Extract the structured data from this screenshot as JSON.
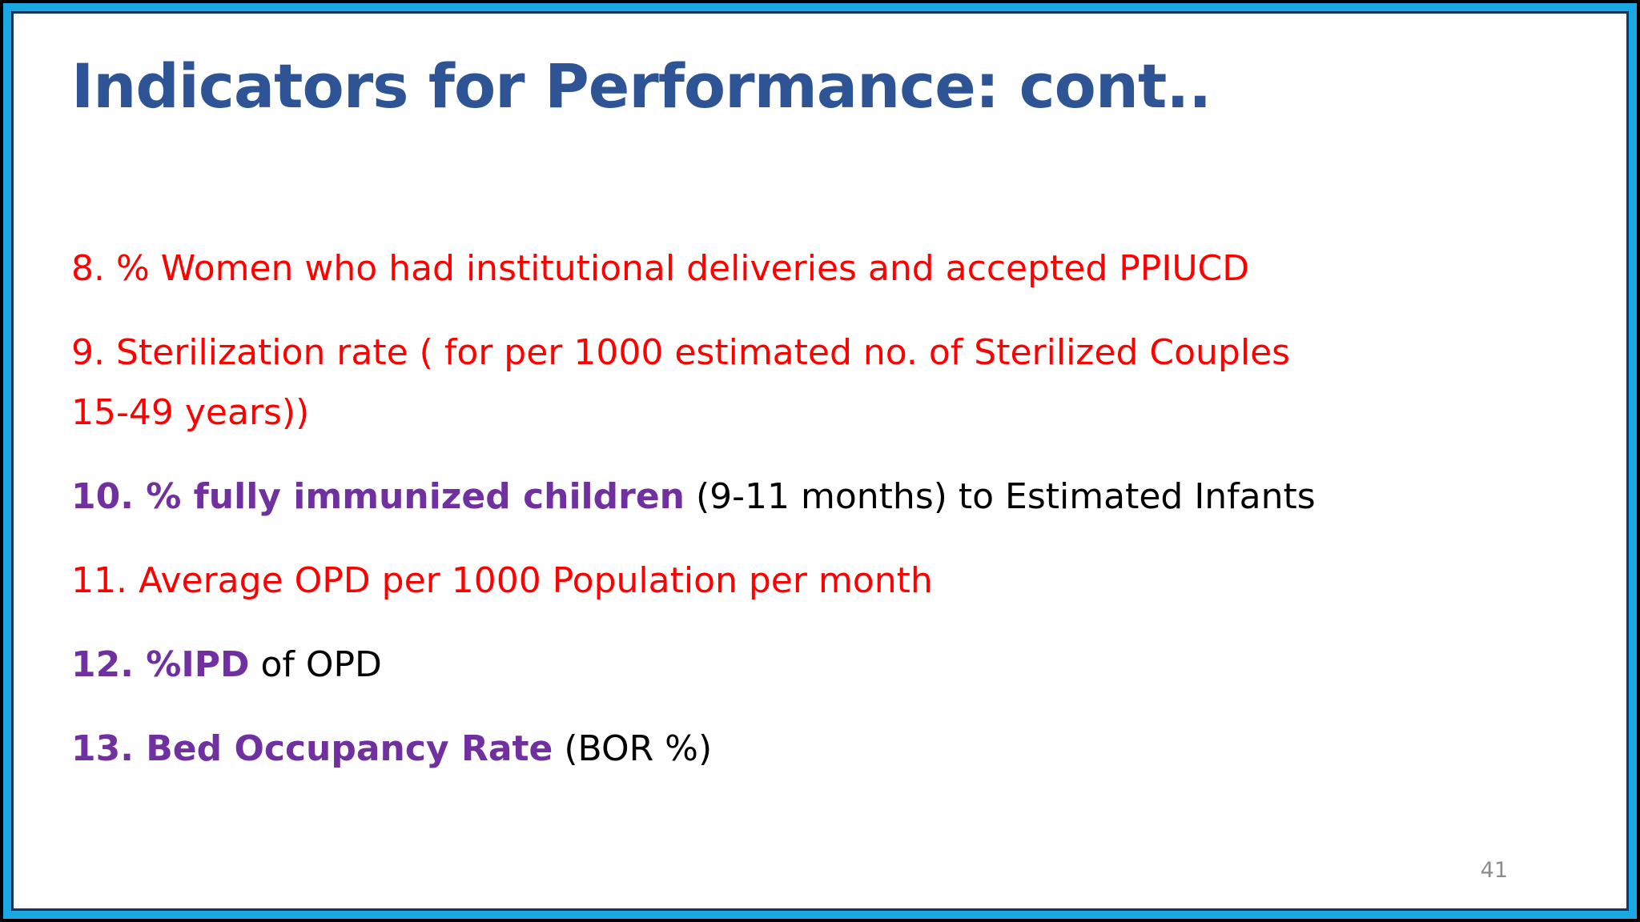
{
  "slide": {
    "title": "Indicators for Performance: cont..",
    "page_number": "41",
    "items": [
      {
        "segments": [
          {
            "text": "8. % Women who had institutional deliveries and accepted PPIUCD",
            "style": "red"
          }
        ]
      },
      {
        "segments": [
          {
            "text": "9. Sterilization rate ( for per 1000 estimated no. of Sterilized Couples\n15-49 years))",
            "style": "red"
          }
        ]
      },
      {
        "segments": [
          {
            "text": "10. % fully immunized children",
            "style": "purple-bold"
          },
          {
            "text": " (9-11 months) to Estimated Infants",
            "style": "black"
          }
        ]
      },
      {
        "segments": [
          {
            "text": "11. Average OPD per 1000 Population per month",
            "style": "red"
          }
        ]
      },
      {
        "segments": [
          {
            "text": "12. %IPD",
            "style": "purple-bold"
          },
          {
            "text": " of OPD",
            "style": "black"
          }
        ]
      },
      {
        "segments": [
          {
            "text": "13. Bed Occupancy Rate",
            "style": "purple-bold"
          },
          {
            "text": " (BOR %)",
            "style": "black"
          }
        ]
      }
    ],
    "colors": {
      "title_blue": "#2E5496",
      "list_red": "#FF0000",
      "list_purple": "#7030A0",
      "body_black": "#000000",
      "page_number_gray": "#8C8C8C",
      "border_cyan": "#1BA7E2",
      "border_navy": "#16365C",
      "outer_frame_black": "#000000",
      "slide_background": "#FFFFFF"
    }
  }
}
